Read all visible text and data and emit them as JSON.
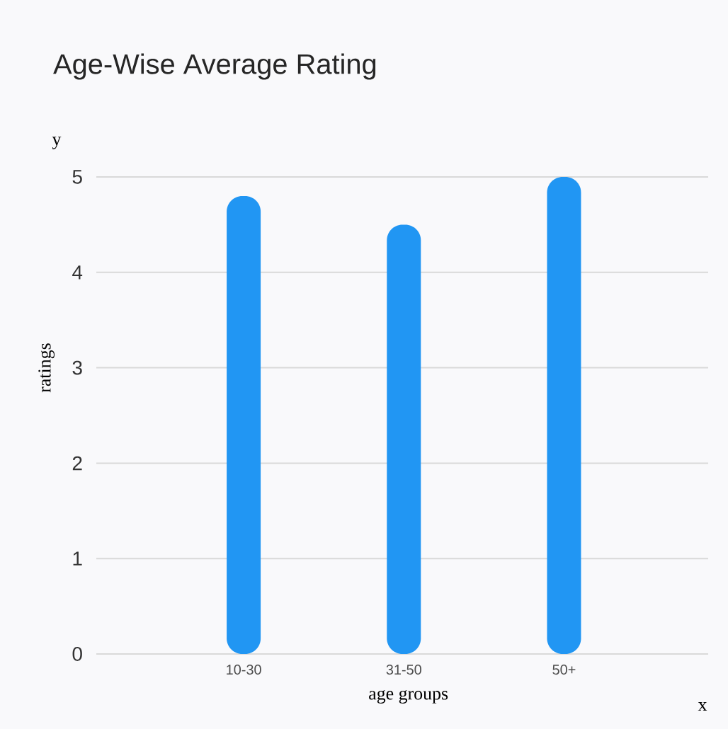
{
  "chart_data": {
    "type": "bar",
    "title": "Age-Wise Average Rating",
    "xlabel": "age groups",
    "ylabel": "ratings",
    "annotations": [
      "y",
      "x"
    ],
    "categories": [
      "10-30",
      "31-50",
      "50+"
    ],
    "values": [
      4.8,
      4.5,
      5.0
    ],
    "color": "#2196f3",
    "ylim": [
      0,
      5
    ],
    "yticks": [
      0,
      1,
      2,
      3,
      4,
      5
    ],
    "grid": "y"
  }
}
